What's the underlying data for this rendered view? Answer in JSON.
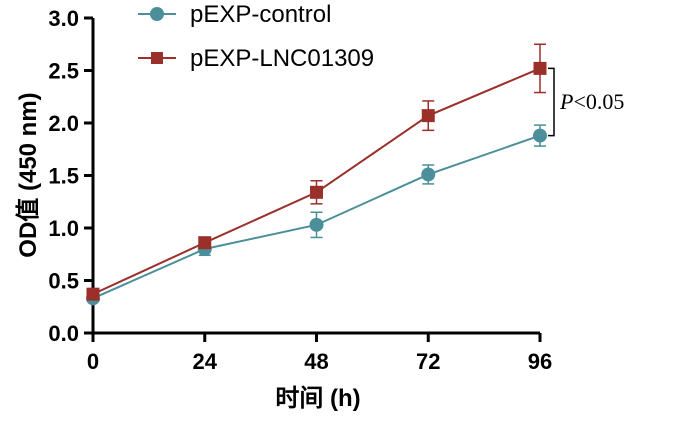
{
  "chart_data": {
    "type": "line",
    "title": "",
    "xlabel": "时间 (h)",
    "ylabel": "OD值 (450 nm)",
    "x": [
      0,
      24,
      48,
      72,
      96
    ],
    "x_tick_labels": [
      "0",
      "24",
      "48",
      "72",
      "96"
    ],
    "xlim": [
      0,
      96
    ],
    "ylim": [
      0,
      3.0
    ],
    "y_ticks": [
      0.0,
      0.5,
      1.0,
      1.5,
      2.0,
      2.5,
      3.0
    ],
    "y_tick_labels": [
      "0.0",
      "0.5",
      "1.0",
      "1.5",
      "2.0",
      "2.5",
      "3.0"
    ],
    "grid": false,
    "legend_position": "top",
    "series": [
      {
        "name": "pEXP-control",
        "marker": "circle",
        "color": "#4b8f9a",
        "values": [
          0.33,
          0.8,
          1.03,
          1.51,
          1.88
        ],
        "errors": [
          0.03,
          0.06,
          0.12,
          0.09,
          0.1
        ]
      },
      {
        "name": "pEXP-LNC01309",
        "marker": "square",
        "color": "#9b2f2a",
        "values": [
          0.37,
          0.86,
          1.34,
          2.07,
          2.52
        ],
        "errors": [
          0.03,
          0.04,
          0.11,
          0.14,
          0.23
        ]
      }
    ],
    "annotation": {
      "prefix": "P",
      "text": "<0.05",
      "x": 96,
      "y_range": [
        1.88,
        2.52
      ]
    }
  }
}
